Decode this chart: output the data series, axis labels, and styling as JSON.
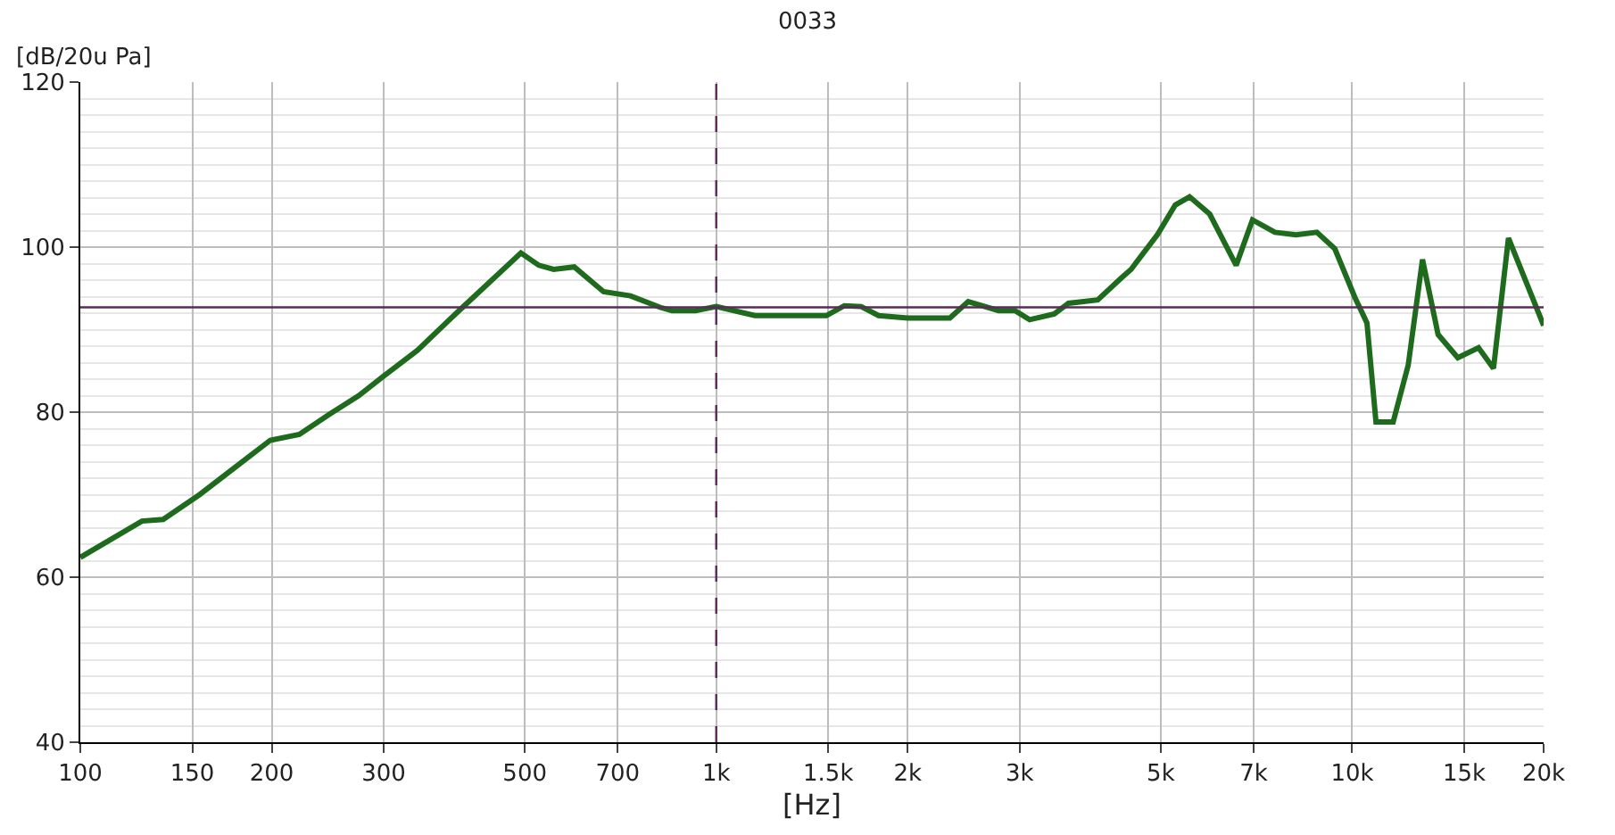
{
  "chart_data": {
    "type": "line",
    "title": "0033",
    "xlabel": "[Hz]",
    "ylabel": "[dB/20u Pa]",
    "log": "x",
    "grid": true,
    "marker": "none",
    "line_style": "solid",
    "xlim": [
      100,
      20000
    ],
    "ylim": [
      40,
      120
    ],
    "yticks": [
      40,
      60,
      80,
      100,
      120
    ],
    "xticks": [
      100,
      150,
      200,
      300,
      500,
      700,
      {
        "value": 1000,
        "label": "1k"
      },
      {
        "value": 1500,
        "label": "1.5k"
      },
      {
        "value": 2000,
        "label": "2k"
      },
      {
        "value": 3000,
        "label": "3k"
      },
      {
        "value": 5000,
        "label": "5k"
      },
      {
        "value": 7000,
        "label": "7k"
      },
      {
        "value": 10000,
        "label": "10k"
      },
      {
        "value": 15000,
        "label": "15k"
      },
      {
        "value": 20000,
        "label": "20k"
      }
    ],
    "ref_lines": [
      {
        "axis": "x",
        "value": 1000,
        "color": "#5a2a5a",
        "line_style": "dashed"
      },
      {
        "axis": "y",
        "value": 92.7,
        "color": "#5a2a5a",
        "line_style": "solid"
      }
    ],
    "series": [
      {
        "color": "#1e6b1e",
        "x": [
          100,
          125,
          135,
          154,
          199,
          221,
          246,
          274,
          298,
          339,
          394,
          493,
          526,
          555,
          598,
          665,
          733,
          816,
          852,
          928,
          1000,
          1150,
          1490,
          1590,
          1690,
          1800,
          2000,
          2330,
          2490,
          2780,
          2950,
          3110,
          3400,
          3580,
          3980,
          4340,
          4490,
          4940,
          5270,
          5550,
          5970,
          6570,
          6970,
          7560,
          8160,
          8800,
          9390,
          10100,
          10550,
          10900,
          11600,
          12250,
          12900,
          13650,
          14660,
          15800,
          16680,
          17610,
          20000
        ],
        "values": [
          62.4,
          66.8,
          67.0,
          70.0,
          76.6,
          77.3,
          79.7,
          82.0,
          84.2,
          87.5,
          92.3,
          99.3,
          97.8,
          97.3,
          97.6,
          94.6,
          94.1,
          92.7,
          92.3,
          92.3,
          92.8,
          91.7,
          91.7,
          92.9,
          92.8,
          91.7,
          91.4,
          91.4,
          93.4,
          92.3,
          92.3,
          91.2,
          91.9,
          93.2,
          93.6,
          96.3,
          97.3,
          101.5,
          105.1,
          106.1,
          104.0,
          97.8,
          103.3,
          101.8,
          101.5,
          101.8,
          99.8,
          93.9,
          90.8,
          78.8,
          78.8,
          85.7,
          98.5,
          89.4,
          86.6,
          87.8,
          85.3,
          101.1,
          90.5
        ]
      }
    ]
  }
}
